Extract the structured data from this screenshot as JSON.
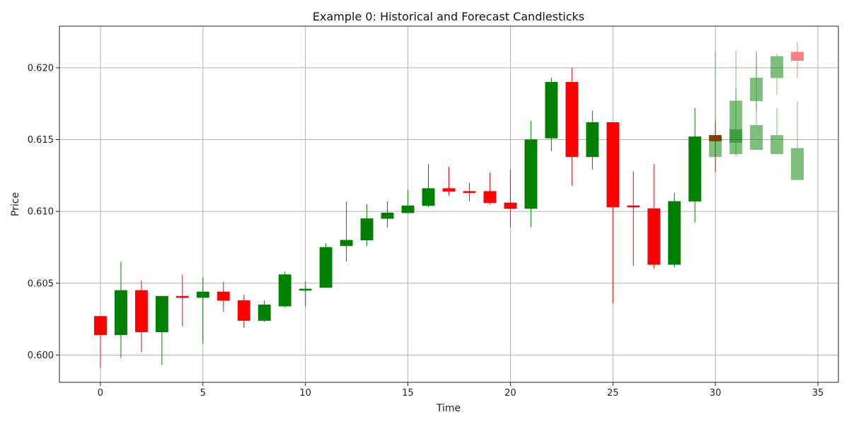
{
  "chart_data": {
    "type": "candlestick",
    "title": "Example 0: Historical and Forecast Candlesticks",
    "xlabel": "Time",
    "ylabel": "Price",
    "xlim": [
      -2,
      36
    ],
    "ylim": [
      0.5981,
      0.6229
    ],
    "xticks": [
      0,
      5,
      10,
      15,
      20,
      25,
      30,
      35
    ],
    "yticks": [
      0.6,
      0.605,
      0.61,
      0.615,
      0.62
    ],
    "ytick_labels": [
      "0.600",
      "0.605",
      "0.610",
      "0.615",
      "0.620"
    ],
    "grid": true,
    "colors": {
      "up": "#008000",
      "down": "#ff0000",
      "grid": "#b0b0b0"
    },
    "historical": [
      {
        "t": 0,
        "open": 0.6027,
        "high": 0.6027,
        "low": 0.5991,
        "close": 0.6014
      },
      {
        "t": 1,
        "open": 0.6014,
        "high": 0.6065,
        "low": 0.5998,
        "close": 0.6045
      },
      {
        "t": 2,
        "open": 0.6045,
        "high": 0.6052,
        "low": 0.6002,
        "close": 0.6016
      },
      {
        "t": 3,
        "open": 0.6016,
        "high": 0.6041,
        "low": 0.5993,
        "close": 0.6041
      },
      {
        "t": 4,
        "open": 0.6041,
        "high": 0.6056,
        "low": 0.602,
        "close": 0.604
      },
      {
        "t": 5,
        "open": 0.604,
        "high": 0.6054,
        "low": 0.6008,
        "close": 0.6044
      },
      {
        "t": 6,
        "open": 0.6044,
        "high": 0.6051,
        "low": 0.603,
        "close": 0.6038
      },
      {
        "t": 7,
        "open": 0.6038,
        "high": 0.6042,
        "low": 0.6019,
        "close": 0.6024
      },
      {
        "t": 8,
        "open": 0.6024,
        "high": 0.6038,
        "low": 0.6023,
        "close": 0.6035
      },
      {
        "t": 9,
        "open": 0.6034,
        "high": 0.6058,
        "low": 0.6033,
        "close": 0.6056
      },
      {
        "t": 10,
        "open": 0.6045,
        "high": 0.6051,
        "low": 0.6034,
        "close": 0.6046
      },
      {
        "t": 11,
        "open": 0.6047,
        "high": 0.6078,
        "low": 0.6047,
        "close": 0.6075
      },
      {
        "t": 12,
        "open": 0.6076,
        "high": 0.6107,
        "low": 0.6065,
        "close": 0.608
      },
      {
        "t": 13,
        "open": 0.608,
        "high": 0.6105,
        "low": 0.6076,
        "close": 0.6095
      },
      {
        "t": 14,
        "open": 0.6095,
        "high": 0.6107,
        "low": 0.6089,
        "close": 0.6099
      },
      {
        "t": 15,
        "open": 0.6099,
        "high": 0.6115,
        "low": 0.6099,
        "close": 0.6104
      },
      {
        "t": 16,
        "open": 0.6104,
        "high": 0.6133,
        "low": 0.6103,
        "close": 0.6116
      },
      {
        "t": 17,
        "open": 0.6116,
        "high": 0.6131,
        "low": 0.6111,
        "close": 0.6114
      },
      {
        "t": 18,
        "open": 0.6114,
        "high": 0.612,
        "low": 0.6107,
        "close": 0.6113
      },
      {
        "t": 19,
        "open": 0.6114,
        "high": 0.6127,
        "low": 0.6105,
        "close": 0.6106
      },
      {
        "t": 20,
        "open": 0.6106,
        "high": 0.6129,
        "low": 0.6089,
        "close": 0.6102
      },
      {
        "t": 21,
        "open": 0.6102,
        "high": 0.6163,
        "low": 0.6089,
        "close": 0.615
      },
      {
        "t": 22,
        "open": 0.6151,
        "high": 0.6193,
        "low": 0.6142,
        "close": 0.619
      },
      {
        "t": 23,
        "open": 0.619,
        "high": 0.62,
        "low": 0.6118,
        "close": 0.6138
      },
      {
        "t": 24,
        "open": 0.6138,
        "high": 0.617,
        "low": 0.6129,
        "close": 0.6162
      },
      {
        "t": 25,
        "open": 0.6162,
        "high": 0.6162,
        "low": 0.6036,
        "close": 0.6103
      },
      {
        "t": 26,
        "open": 0.6104,
        "high": 0.6128,
        "low": 0.6062,
        "close": 0.6103
      },
      {
        "t": 27,
        "open": 0.6102,
        "high": 0.6133,
        "low": 0.606,
        "close": 0.6063
      },
      {
        "t": 28,
        "open": 0.6063,
        "high": 0.6113,
        "low": 0.6061,
        "close": 0.6107
      },
      {
        "t": 29,
        "open": 0.6107,
        "high": 0.6172,
        "low": 0.6092,
        "close": 0.6152
      },
      {
        "t": 30,
        "open": 0.6153,
        "high": 0.6163,
        "low": 0.6127,
        "close": 0.6149
      }
    ],
    "forecast": [
      {
        "t": 30,
        "open": 0.6138,
        "high": 0.6211,
        "low": 0.6138,
        "close": 0.6153
      },
      {
        "t": 31,
        "open": 0.614,
        "high": 0.6212,
        "low": 0.6138,
        "close": 0.6157
      },
      {
        "t": 31,
        "open": 0.6148,
        "high": 0.6185,
        "low": 0.614,
        "close": 0.6177
      },
      {
        "t": 32,
        "open": 0.6143,
        "high": 0.621,
        "low": 0.6143,
        "close": 0.616
      },
      {
        "t": 32,
        "open": 0.6177,
        "high": 0.6212,
        "low": 0.617,
        "close": 0.6193
      },
      {
        "t": 33,
        "open": 0.614,
        "high": 0.6172,
        "low": 0.614,
        "close": 0.6153
      },
      {
        "t": 33,
        "open": 0.6193,
        "high": 0.621,
        "low": 0.6181,
        "close": 0.6208
      },
      {
        "t": 34,
        "open": 0.6122,
        "high": 0.6177,
        "low": 0.6122,
        "close": 0.6144
      },
      {
        "t": 34,
        "open": 0.6211,
        "high": 0.6218,
        "low": 0.6193,
        "close": 0.6205
      }
    ]
  }
}
